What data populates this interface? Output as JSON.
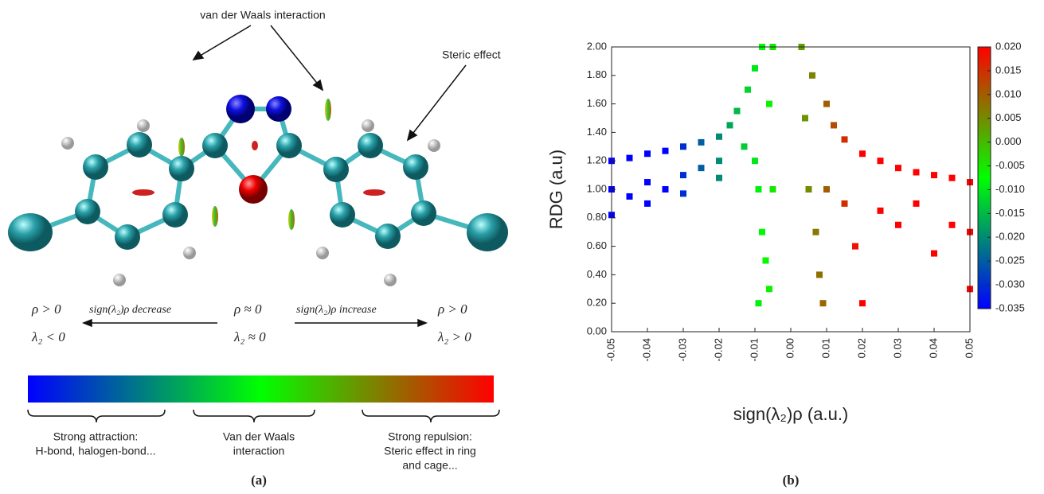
{
  "figure_a": {
    "label": "(a)",
    "vdw_note": "van der Waals interaction",
    "steric_note": "Steric effect",
    "left_rho": "ρ > 0",
    "left_lambda": "λ₂ < 0",
    "decrease": "sign(λ₂)ρ  decrease",
    "mid_rho": "ρ ≈ 0",
    "mid_lambda": "λ₂ ≈ 0",
    "increase": "sign(λ₂)ρ  increase",
    "right_rho": "ρ > 0",
    "right_lambda": "λ₂ > 0",
    "brackets": [
      {
        "lines": [
          "Strong attraction:",
          "H-bond, halogen-bond..."
        ]
      },
      {
        "lines": [
          "Van der Waals",
          "interaction"
        ]
      },
      {
        "lines": [
          "Strong repulsion:",
          "Steric effect in ring",
          "and cage..."
        ]
      }
    ]
  },
  "chart_data": {
    "type": "scatter",
    "label": "(b)",
    "x_label": "sign(λ₂)ρ (a.u.)",
    "y_label": "RDG (a.u)",
    "xlim": [
      -0.05,
      0.05
    ],
    "ylim": [
      0,
      2
    ],
    "xticks": [
      {
        "value": -0.05,
        "label": "-0.05"
      },
      {
        "value": -0.04,
        "label": "-0.04"
      },
      {
        "value": -0.03,
        "label": "-0.03"
      },
      {
        "value": -0.02,
        "label": "-0.02"
      },
      {
        "value": -0.01,
        "label": "-0.01"
      },
      {
        "value": 0,
        "label": "0.00"
      },
      {
        "value": 0.01,
        "label": "0.01"
      },
      {
        "value": 0.02,
        "label": "0.02"
      },
      {
        "value": 0.03,
        "label": "0.03"
      },
      {
        "value": 0.04,
        "label": "0.04"
      },
      {
        "value": 0.05,
        "label": "0.05"
      }
    ],
    "yticks": [
      {
        "value": 0,
        "label": "0.00"
      },
      {
        "value": 0.2,
        "label": "0.20"
      },
      {
        "value": 0.4,
        "label": "0.40"
      },
      {
        "value": 0.6,
        "label": "0.60"
      },
      {
        "value": 0.8,
        "label": "0.80"
      },
      {
        "value": 1,
        "label": "1.00"
      },
      {
        "value": 1.2,
        "label": "1.20"
      },
      {
        "value": 1.4,
        "label": "1.40"
      },
      {
        "value": 1.6,
        "label": "1.60"
      },
      {
        "value": 1.8,
        "label": "1.80"
      },
      {
        "value": 2,
        "label": "2.00"
      }
    ],
    "colormap": [
      "#0000ff",
      "#00ff00",
      "#ff0000"
    ],
    "clim": [
      -0.035,
      0.02
    ],
    "cticks": [
      {
        "value": 0.02,
        "label": "0.020"
      },
      {
        "value": 0.015,
        "label": "0.015"
      },
      {
        "value": 0.01,
        "label": "0.010"
      },
      {
        "value": 0.005,
        "label": "0.005"
      },
      {
        "value": 0,
        "label": "0.000"
      },
      {
        "value": -0.005,
        "label": "-0.005"
      },
      {
        "value": -0.01,
        "label": "-0.010"
      },
      {
        "value": -0.015,
        "label": "-0.015"
      },
      {
        "value": -0.02,
        "label": "-0.020"
      },
      {
        "value": -0.025,
        "label": "-0.025"
      },
      {
        "value": -0.03,
        "label": "-0.030"
      },
      {
        "value": -0.035,
        "label": "-0.035"
      }
    ],
    "series": [
      {
        "x": [
          -0.05,
          -0.05,
          -0.05,
          -0.045,
          -0.045,
          -0.04,
          -0.04,
          -0.04,
          -0.035,
          -0.035,
          -0.03,
          -0.03,
          -0.03,
          -0.025,
          -0.025,
          -0.02,
          -0.02,
          -0.02,
          -0.017,
          -0.015,
          -0.013,
          -0.012,
          -0.01,
          -0.01,
          -0.009,
          -0.008,
          -0.008,
          -0.007,
          -0.006,
          -0.006,
          -0.005,
          -0.005,
          -0.009,
          0.003,
          0.004,
          0.005,
          0.006,
          0.007,
          0.008,
          0.009,
          0.01,
          0.01,
          0.012,
          0.015,
          0.015,
          0.018,
          0.02,
          0.02,
          0.025,
          0.025,
          0.03,
          0.03,
          0.035,
          0.035,
          0.04,
          0.04,
          0.045,
          0.045,
          0.05,
          0.05,
          0.05
        ],
        "y": [
          1.2,
          1.0,
          0.82,
          1.22,
          0.95,
          1.25,
          1.05,
          0.9,
          1.27,
          1.0,
          1.3,
          1.1,
          0.97,
          1.33,
          1.15,
          1.37,
          1.2,
          1.08,
          1.45,
          1.55,
          1.3,
          1.7,
          1.85,
          1.2,
          1.0,
          2.0,
          0.7,
          0.5,
          1.6,
          0.3,
          2.0,
          1.0,
          0.2,
          2.0,
          1.5,
          1.0,
          1.8,
          0.7,
          0.4,
          0.2,
          1.6,
          1.0,
          1.45,
          1.35,
          0.9,
          0.6,
          0.2,
          1.25,
          1.2,
          0.85,
          1.15,
          0.75,
          1.12,
          0.9,
          1.1,
          0.55,
          1.08,
          0.75,
          1.05,
          0.7,
          0.3
        ]
      }
    ]
  }
}
